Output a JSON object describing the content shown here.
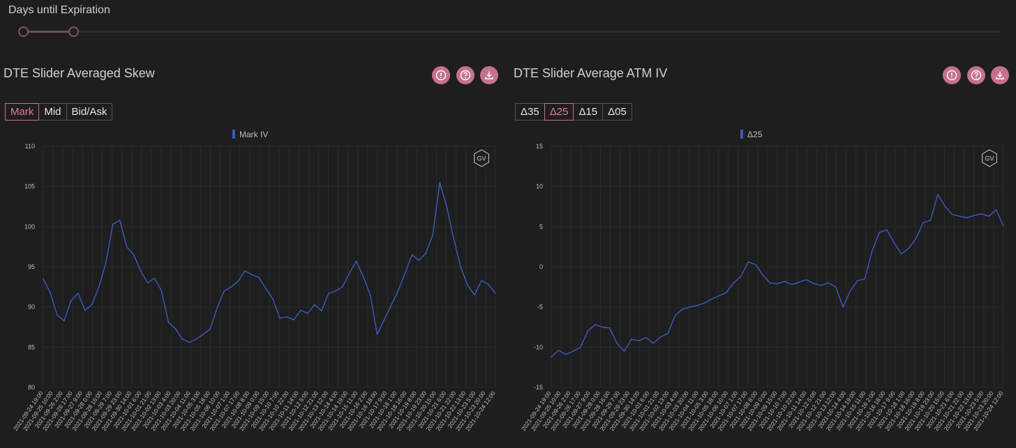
{
  "slider": {
    "label": "Days until Expiration",
    "accent": "#7a5566"
  },
  "left_panel": {
    "title": "DTE Slider Averaged Skew",
    "buttons": [
      "Mark",
      "Mid",
      "Bid/Ask"
    ],
    "active_button": "Mark",
    "icons": [
      "alert-icon",
      "help-icon",
      "download-icon"
    ],
    "watermark": "GV"
  },
  "right_panel": {
    "title": "DTE Slider Average ATM IV",
    "buttons": [
      "Δ35",
      "Δ25",
      "Δ15",
      "Δ05"
    ],
    "active_button": "Δ25",
    "icons": [
      "alert-icon",
      "help-icon",
      "download-icon"
    ],
    "watermark": "GV"
  },
  "colors": {
    "accent": "#c5708f",
    "series": "#3a5bbf",
    "background": "#1e1e1e"
  },
  "chart_data": [
    {
      "type": "line",
      "title": "",
      "legend": [
        "Mark IV"
      ],
      "legend_position": "top-center",
      "xlabel": "",
      "ylabel": "",
      "ylim": [
        80,
        110
      ],
      "yticks": [
        80,
        85,
        90,
        95,
        100,
        105,
        110
      ],
      "grid": true,
      "x_tick_labels": [
        "2021-09-24 19:00",
        "2021-09-25 10:00",
        "2021-09-26 2:00",
        "2021-09-26 17:00",
        "2021-09-27 9:00",
        "2021-09-28 0:00",
        "2021-09-28 16:00",
        "2021-09-29 7:00",
        "2021-09-29 23:00",
        "2021-09-30 14:00",
        "2021-10-01 6:00",
        "2021-10-01 21:00",
        "2021-10-02 13:00",
        "2021-10-03 4:00",
        "2021-10-03 20:00",
        "2021-10-04 11:00",
        "2021-10-05 3:00",
        "2021-10-05 18:00",
        "2021-10-06 10:00",
        "2021-10-07 1:00",
        "2021-10-07 17:00",
        "2021-10-08 8:00",
        "2021-10-09 0:00",
        "2021-10-09 15:00",
        "2021-10-10 7:00",
        "2021-10-10 22:00",
        "2021-10-11 14:00",
        "2021-10-12 5:00",
        "2021-10-12 21:00",
        "2021-10-13 12:00",
        "2021-10-14 4:00",
        "2021-10-14 19:00",
        "2021-10-15 11:00",
        "2021-10-16 2:00",
        "2021-10-16 18:00",
        "2021-10-17 9:00",
        "2021-10-18 1:00",
        "2021-10-18 16:00",
        "2021-10-19 8:00",
        "2021-10-19 23:00",
        "2021-10-20 15:00",
        "2021-10-21 6:00",
        "2021-10-21 22:00",
        "2021-10-22 13:00",
        "2021-10-23 5:00",
        "2021-10-23 20:00",
        "2021-10-24 12:00"
      ],
      "series": [
        {
          "name": "Mark IV",
          "values": [
            93.5,
            91.8,
            89.0,
            88.3,
            90.8,
            91.7,
            89.6,
            90.3,
            92.5,
            95.5,
            100.3,
            100.8,
            97.5,
            96.5,
            94.5,
            93.0,
            93.6,
            92.0,
            88.1,
            87.3,
            86.0,
            85.6,
            86.0,
            86.6,
            87.3,
            89.9,
            92.0,
            92.5,
            93.2,
            94.5,
            94.0,
            93.7,
            92.3,
            91.0,
            88.6,
            88.8,
            88.4,
            89.6,
            89.2,
            90.3,
            89.5,
            91.7,
            92.0,
            92.5,
            94.2,
            95.7,
            93.8,
            91.5,
            86.6,
            88.4,
            90.2,
            92.0,
            94.2,
            96.5,
            95.8,
            96.7,
            99.0,
            105.5,
            102.5,
            98.5,
            95.0,
            92.7,
            91.5,
            93.3,
            92.8,
            91.7
          ]
        }
      ]
    },
    {
      "type": "line",
      "title": "",
      "legend": [
        "Δ25"
      ],
      "legend_position": "top-center",
      "xlabel": "",
      "ylabel": "",
      "ylim": [
        -15,
        15
      ],
      "yticks": [
        -15,
        -10,
        -5,
        0,
        5,
        10,
        15
      ],
      "grid": true,
      "x_tick_labels": [
        "2021-09-24 19:00",
        "2021-09-25 10:00",
        "2021-09-26 2:00",
        "2021-09-26 17:00",
        "2021-09-27 9:00",
        "2021-09-28 0:00",
        "2021-09-28 16:00",
        "2021-09-29 7:00",
        "2021-09-29 23:00",
        "2021-09-30 14:00",
        "2021-10-01 6:00",
        "2021-10-01 21:00",
        "2021-10-02 13:00",
        "2021-10-03 4:00",
        "2021-10-03 20:00",
        "2021-10-04 11:00",
        "2021-10-05 3:00",
        "2021-10-05 18:00",
        "2021-10-06 10:00",
        "2021-10-07 1:00",
        "2021-10-07 17:00",
        "2021-10-08 8:00",
        "2021-10-09 0:00",
        "2021-10-09 15:00",
        "2021-10-10 7:00",
        "2021-10-10 22:00",
        "2021-10-11 14:00",
        "2021-10-12 5:00",
        "2021-10-12 21:00",
        "2021-10-13 12:00",
        "2021-10-14 4:00",
        "2021-10-14 19:00",
        "2021-10-15 11:00",
        "2021-10-16 2:00",
        "2021-10-16 18:00",
        "2021-10-17 9:00",
        "2021-10-18 1:00",
        "2021-10-18 16:00",
        "2021-10-19 8:00",
        "2021-10-19 23:00",
        "2021-10-20 15:00",
        "2021-10-21 6:00",
        "2021-10-21 22:00",
        "2021-10-22 13:00",
        "2021-10-23 5:00",
        "2021-10-23 20:00",
        "2021-10-24 12:00"
      ],
      "series": [
        {
          "name": "Δ25",
          "values": [
            -11.2,
            -10.4,
            -10.9,
            -10.5,
            -10.0,
            -8.0,
            -7.2,
            -7.5,
            -7.6,
            -9.5,
            -10.5,
            -9.0,
            -9.2,
            -8.8,
            -9.5,
            -8.7,
            -8.3,
            -6.0,
            -5.3,
            -5.0,
            -4.8,
            -4.5,
            -4.0,
            -3.6,
            -3.2,
            -2.0,
            -1.2,
            0.6,
            0.3,
            -1.0,
            -2.0,
            -2.1,
            -1.8,
            -2.2,
            -1.9,
            -1.6,
            -2.1,
            -2.3,
            -2.0,
            -2.5,
            -5.0,
            -3.0,
            -1.7,
            -1.5,
            2.0,
            4.3,
            4.6,
            3.0,
            1.6,
            2.3,
            3.5,
            5.5,
            5.8,
            9.0,
            7.5,
            6.5,
            6.3,
            6.1,
            6.4,
            6.6,
            6.3,
            7.1,
            5.1
          ]
        }
      ]
    }
  ]
}
